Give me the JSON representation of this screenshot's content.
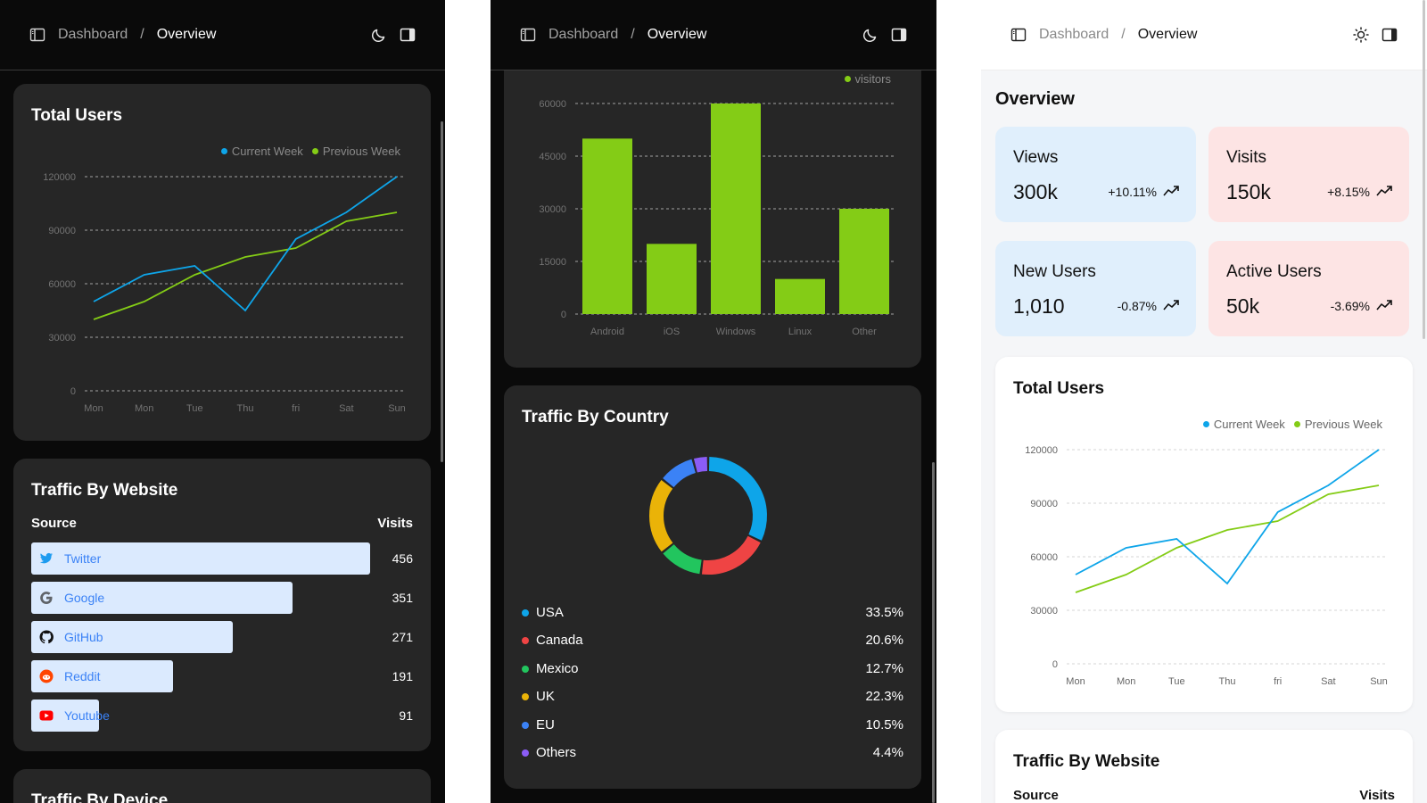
{
  "header": {
    "crumb_parent": "Dashboard",
    "crumb_separator": "/",
    "crumb_current": "Overview",
    "icons": {
      "sidebar_toggle": "sidebar-icon",
      "theme_dark": "moon-icon",
      "theme_light": "sun-icon",
      "panel": "panel-icon"
    }
  },
  "overview": {
    "title": "Overview",
    "stats": [
      {
        "label": "Views",
        "value": "300k",
        "change": "+10.11%",
        "bg": "#e0effc"
      },
      {
        "label": "Visits",
        "value": "150k",
        "change": "+8.15%",
        "bg": "#fde4e4"
      },
      {
        "label": "New Users",
        "value": "1,010",
        "change": "-0.87%",
        "bg": "#e0effc"
      },
      {
        "label": "Active Users",
        "value": "50k",
        "change": "-3.69%",
        "bg": "#fde4e4"
      }
    ]
  },
  "total_users": {
    "title": "Total Users",
    "legend": [
      "Current Week",
      "Previous Week"
    ]
  },
  "traffic_website": {
    "title": "Traffic By Website",
    "col_source": "Source",
    "col_visits": "Visits",
    "rows": [
      {
        "name": "Twitter",
        "value": "456",
        "icon": "twitter-icon"
      },
      {
        "name": "Google",
        "value": "351",
        "icon": "google-icon"
      },
      {
        "name": "GitHub",
        "value": "271",
        "icon": "github-icon"
      },
      {
        "name": "Reddit",
        "value": "191",
        "icon": "reddit-icon"
      },
      {
        "name": "Youtube",
        "value": "91",
        "icon": "youtube-icon"
      }
    ]
  },
  "traffic_device": {
    "title": "Traffic By Device",
    "legend": "visitors"
  },
  "traffic_country": {
    "title": "Traffic By Country",
    "rows": [
      {
        "name": "USA",
        "value": "33.5%",
        "color": "#0ea5e9"
      },
      {
        "name": "Canada",
        "value": "20.6%",
        "color": "#ef4444"
      },
      {
        "name": "Mexico",
        "value": "12.7%",
        "color": "#22c55e"
      },
      {
        "name": "UK",
        "value": "22.3%",
        "color": "#eab308"
      },
      {
        "name": "EU",
        "value": "10.5%",
        "color": "#3b82f6"
      },
      {
        "name": "Others",
        "value": "4.4%",
        "color": "#8b5cf6"
      }
    ]
  },
  "colors": {
    "current_week": "#0ea5e9",
    "previous_week": "#84cc16",
    "device_bar": "#84cc16"
  },
  "chart_data": [
    {
      "type": "line",
      "title": "Total Users",
      "categories": [
        "Mon",
        "Mon",
        "Tue",
        "Thu",
        "fri",
        "Sat",
        "Sun"
      ],
      "series": [
        {
          "name": "Current Week",
          "values": [
            50000,
            65000,
            70000,
            45000,
            85000,
            100000,
            120000
          ]
        },
        {
          "name": "Previous Week",
          "values": [
            40000,
            50000,
            65000,
            75000,
            80000,
            95000,
            100000
          ]
        }
      ],
      "ylim": [
        0,
        120000
      ],
      "yticks": [
        0,
        30000,
        60000,
        90000,
        120000
      ],
      "grid": true,
      "legend_position": "top-right"
    },
    {
      "type": "bar",
      "categories": [
        "Android",
        "iOS",
        "Windows",
        "Linux",
        "Other"
      ],
      "series": [
        {
          "name": "visitors",
          "values": [
            50000,
            20000,
            60000,
            10000,
            30000
          ]
        }
      ],
      "ylim": [
        0,
        60000
      ],
      "yticks": [
        0,
        15000,
        30000,
        45000,
        60000
      ],
      "grid": true,
      "legend_position": "top-right"
    },
    {
      "type": "pie",
      "title": "Traffic By Country",
      "categories": [
        "USA",
        "Canada",
        "Mexico",
        "UK",
        "EU",
        "Others"
      ],
      "values": [
        33.5,
        20.6,
        12.7,
        22.3,
        10.5,
        4.4
      ]
    }
  ]
}
